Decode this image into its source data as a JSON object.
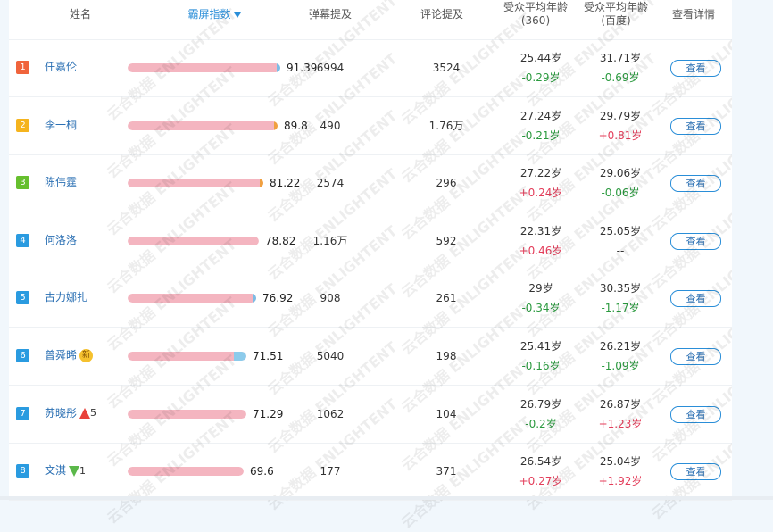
{
  "headers": {
    "name": "姓名",
    "index": "霸屏指数",
    "danmu": "弹幕提及",
    "comment": "评论提及",
    "age360_line1": "受众平均年龄",
    "age360_line2": "(360)",
    "agebaidu_line1": "受众平均年龄",
    "agebaidu_line2": "(百度)",
    "detail": "查看详情"
  },
  "colors": {
    "accent": "#2a8ed8",
    "bar": "#f4b5c0",
    "positive": "#e33d5a",
    "negative": "#2b9a3f",
    "rank1": "#f0643c",
    "rank2": "#f5b41e",
    "rank3": "#66bf2e",
    "rank_other": "#2a9be0"
  },
  "watermark": "云合数据 ENLIGHTENT",
  "rows": [
    {
      "rank": "1",
      "name": "任嘉伦",
      "badge": "",
      "trend_dir": "",
      "trend_val": "",
      "score": "91.39",
      "score_value": 91.39,
      "tip": "#7bbce6",
      "danmu": "6994",
      "comment": "3524",
      "age360": "25.44岁",
      "age360_delta": "-0.29岁",
      "age360_sign": "neg",
      "agebaidu": "31.71岁",
      "agebaidu_delta": "-0.69岁",
      "agebaidu_sign": "neg",
      "detail_label": "查看"
    },
    {
      "rank": "2",
      "name": "李一桐",
      "badge": "",
      "trend_dir": "",
      "trend_val": "",
      "score": "89.8",
      "score_value": 89.8,
      "tip": "#f0a040",
      "danmu": "490",
      "comment": "1.76万",
      "age360": "27.24岁",
      "age360_delta": "-0.21岁",
      "age360_sign": "neg",
      "agebaidu": "29.79岁",
      "agebaidu_delta": "+0.81岁",
      "agebaidu_sign": "pos",
      "detail_label": "查看"
    },
    {
      "rank": "3",
      "name": "陈伟霆",
      "badge": "",
      "trend_dir": "",
      "trend_val": "",
      "score": "81.22",
      "score_value": 81.22,
      "tip": "#f0a040",
      "danmu": "2574",
      "comment": "296",
      "age360": "27.22岁",
      "age360_delta": "+0.24岁",
      "age360_sign": "pos",
      "agebaidu": "29.06岁",
      "agebaidu_delta": "-0.06岁",
      "agebaidu_sign": "neg",
      "detail_label": "查看"
    },
    {
      "rank": "4",
      "name": "何洛洛",
      "badge": "",
      "trend_dir": "",
      "trend_val": "",
      "score": "78.82",
      "score_value": 78.82,
      "tip": "",
      "danmu": "1.16万",
      "comment": "592",
      "age360": "22.31岁",
      "age360_delta": "+0.46岁",
      "age360_sign": "pos",
      "agebaidu": "25.05岁",
      "agebaidu_delta": "--",
      "agebaidu_sign": "none",
      "detail_label": "查看"
    },
    {
      "rank": "5",
      "name": "古力娜扎",
      "badge": "",
      "trend_dir": "",
      "trend_val": "",
      "score": "76.92",
      "score_value": 76.92,
      "tip": "#7bbce6",
      "danmu": "908",
      "comment": "261",
      "age360": "29岁",
      "age360_delta": "-0.34岁",
      "age360_sign": "neg",
      "agebaidu": "30.35岁",
      "agebaidu_delta": "-1.17岁",
      "agebaidu_sign": "neg",
      "detail_label": "查看"
    },
    {
      "rank": "6",
      "name": "曾舜晞",
      "badge": "新",
      "trend_dir": "",
      "trend_val": "",
      "score": "71.51",
      "score_value": 71.51,
      "tip": "#8ccbeb",
      "danmu": "5040",
      "comment": "198",
      "age360": "25.41岁",
      "age360_delta": "-0.16岁",
      "age360_sign": "neg",
      "agebaidu": "26.21岁",
      "agebaidu_delta": "-1.09岁",
      "agebaidu_sign": "neg",
      "detail_label": "查看"
    },
    {
      "rank": "7",
      "name": "苏晓彤",
      "badge": "",
      "trend_dir": "up",
      "trend_val": "5",
      "score": "71.29",
      "score_value": 71.29,
      "tip": "",
      "danmu": "1062",
      "comment": "104",
      "age360": "26.79岁",
      "age360_delta": "-0.2岁",
      "age360_sign": "neg",
      "agebaidu": "26.87岁",
      "agebaidu_delta": "+1.23岁",
      "agebaidu_sign": "pos",
      "detail_label": "查看"
    },
    {
      "rank": "8",
      "name": "文淇",
      "badge": "",
      "trend_dir": "down",
      "trend_val": "1",
      "score": "69.6",
      "score_value": 69.6,
      "tip": "",
      "danmu": "177",
      "comment": "371",
      "age360": "26.54岁",
      "age360_delta": "+0.27岁",
      "age360_sign": "pos",
      "agebaidu": "25.04岁",
      "agebaidu_delta": "+1.92岁",
      "agebaidu_sign": "pos",
      "detail_label": "查看"
    }
  ]
}
